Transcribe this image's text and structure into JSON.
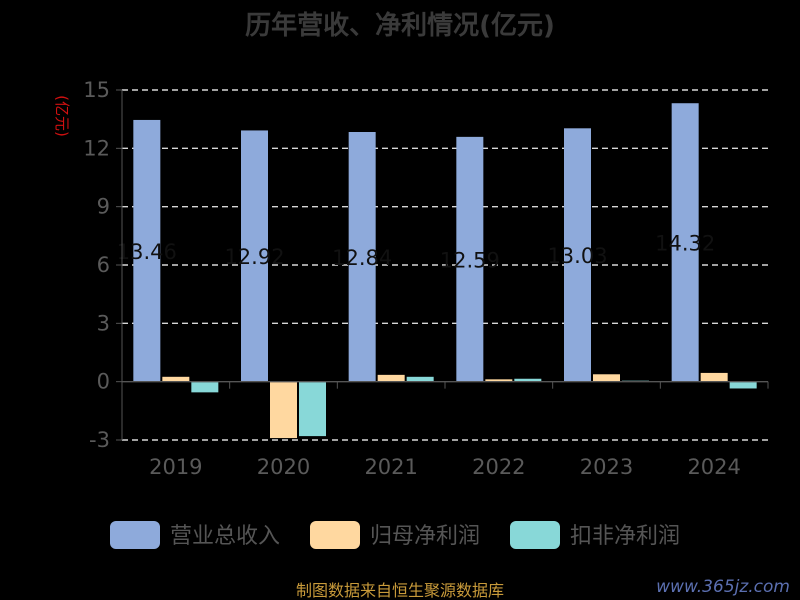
{
  "chart_data": {
    "type": "bar",
    "title": "历年营收、净利情况(亿元)",
    "ylabel": "(亿元)",
    "categories": [
      "2019",
      "2020",
      "2021",
      "2022",
      "2023",
      "2024"
    ],
    "series": [
      {
        "name": "营业总收入",
        "color": "#8eaadb",
        "values": [
          13.46,
          12.92,
          12.84,
          12.59,
          13.03,
          14.32
        ],
        "labels": [
          "13.46",
          "12.92",
          "12.84",
          "12.59",
          "13.03",
          "14.32"
        ]
      },
      {
        "name": "归母净利润",
        "color": "#ffd8a0",
        "values": [
          0.25,
          -2.9,
          0.35,
          0.12,
          0.38,
          0.45
        ]
      },
      {
        "name": "扣非净利润",
        "color": "#88d8d8",
        "values": [
          -0.55,
          -2.8,
          0.25,
          0.15,
          0.05,
          -0.35
        ]
      }
    ],
    "ylim": [
      -3,
      15
    ],
    "yticks": [
      -3,
      0,
      3,
      6,
      9,
      12,
      15
    ],
    "grid": true,
    "legend": "bottom"
  },
  "source": "制图数据来自恒生聚源数据库",
  "watermark": "www.365jz.com"
}
